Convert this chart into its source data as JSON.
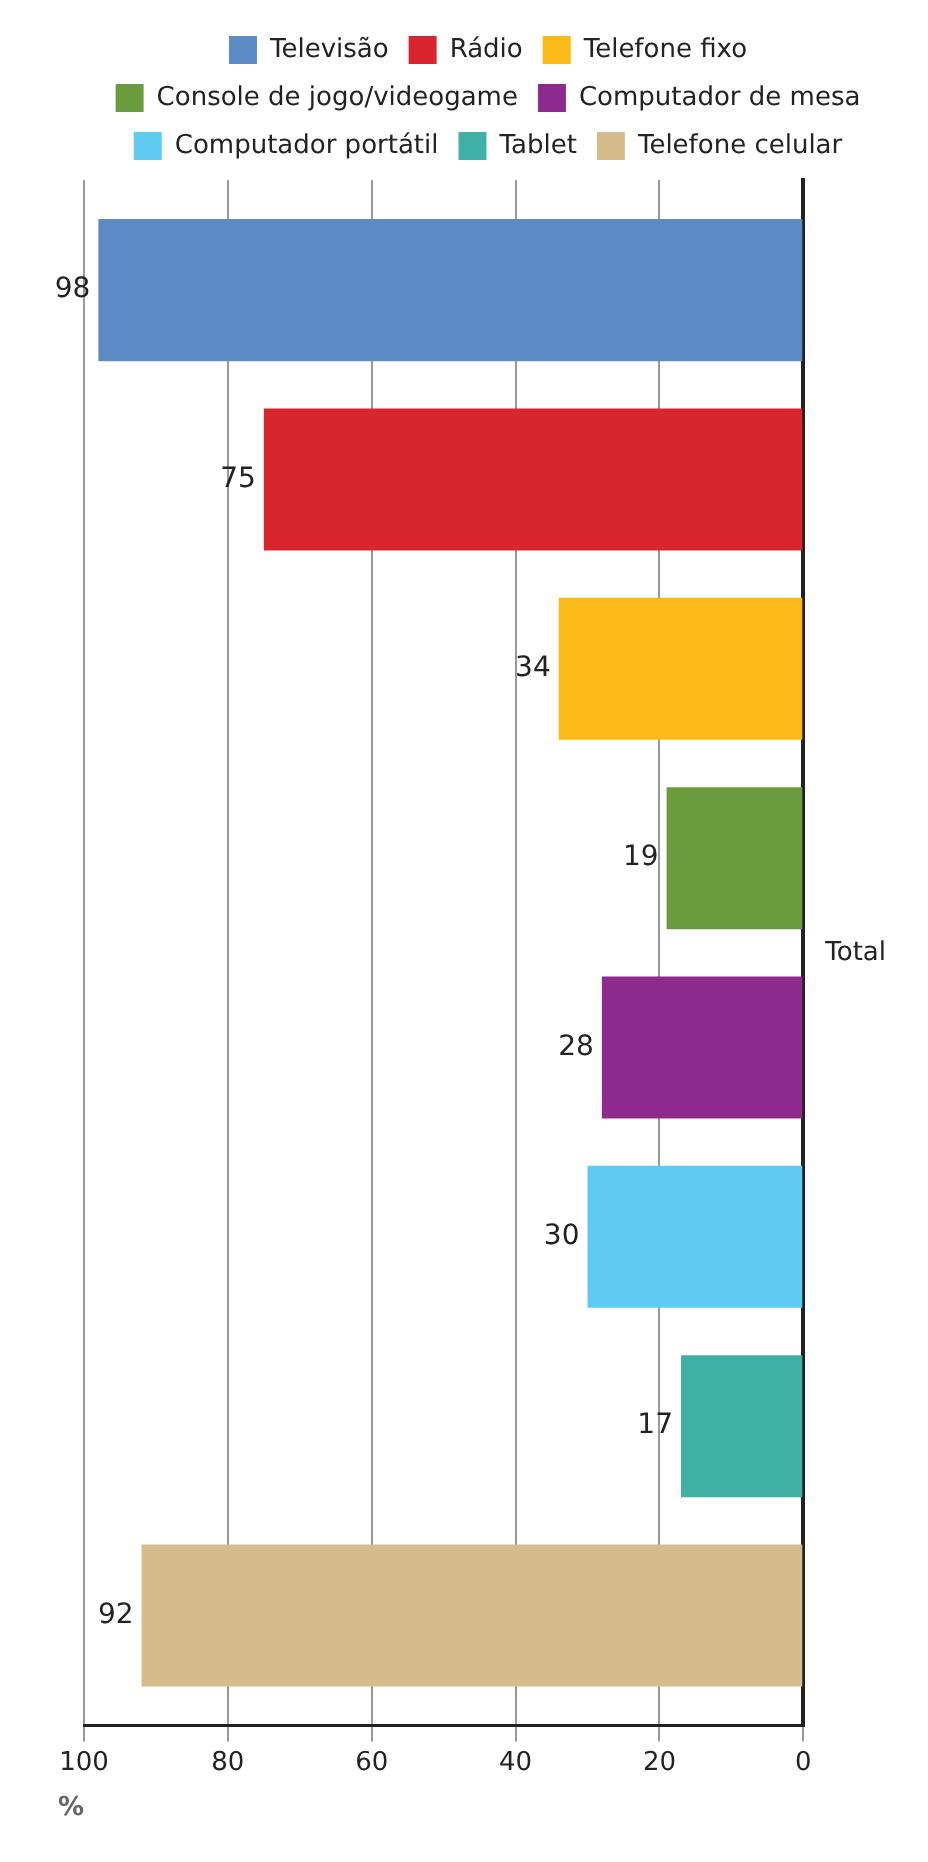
{
  "chart_data": {
    "type": "bar",
    "orientation": "horizontal",
    "categories": [
      "Total"
    ],
    "series": [
      {
        "name": "Televisão",
        "color": "#5b8ac4",
        "values": [
          98
        ]
      },
      {
        "name": "Rádio",
        "color": "#d9262e",
        "values": [
          75
        ]
      },
      {
        "name": "Telefone fixo",
        "color": "#fbb917",
        "values": [
          34
        ]
      },
      {
        "name": "Console de jogo/videogame",
        "color": "#6a9b3c",
        "values": [
          19
        ]
      },
      {
        "name": "Computador de mesa",
        "color": "#8e2a8e",
        "values": [
          28
        ]
      },
      {
        "name": "Computador portátil",
        "color": "#5fcbf3",
        "values": [
          30
        ]
      },
      {
        "name": "Tablet",
        "color": "#3fb0a5",
        "values": [
          17
        ]
      },
      {
        "name": "Telefone celular",
        "color": "#d6bc8a",
        "values": [
          92
        ]
      }
    ],
    "xlim": [
      100,
      0
    ],
    "xticks": [
      0,
      20,
      40,
      60,
      80,
      100
    ],
    "xlabel": "%",
    "grid": "x",
    "legend": "top",
    "data_labels": true
  }
}
